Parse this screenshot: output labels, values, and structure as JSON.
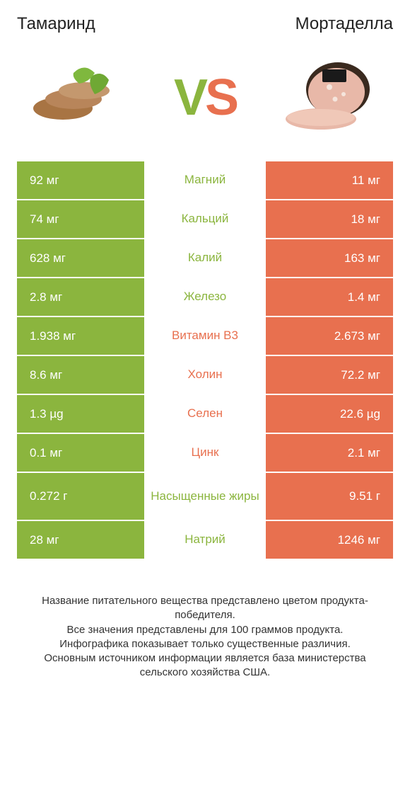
{
  "header": {
    "left_title": "Тамаринд",
    "right_title": "Мортаделла"
  },
  "vs": {
    "v": "V",
    "s": "S"
  },
  "colors": {
    "green": "#8bb53e",
    "red": "#e8704f",
    "white": "#ffffff"
  },
  "rows": [
    {
      "left": "92 мг",
      "label": "Магний",
      "right": "11 мг",
      "winner": "left",
      "tall": false
    },
    {
      "left": "74 мг",
      "label": "Кальций",
      "right": "18 мг",
      "winner": "left",
      "tall": false
    },
    {
      "left": "628 мг",
      "label": "Калий",
      "right": "163 мг",
      "winner": "left",
      "tall": false
    },
    {
      "left": "2.8 мг",
      "label": "Железо",
      "right": "1.4 мг",
      "winner": "left",
      "tall": false
    },
    {
      "left": "1.938 мг",
      "label": "Витамин B3",
      "right": "2.673 мг",
      "winner": "right",
      "tall": false
    },
    {
      "left": "8.6 мг",
      "label": "Холин",
      "right": "72.2 мг",
      "winner": "right",
      "tall": false
    },
    {
      "left": "1.3 µg",
      "label": "Селен",
      "right": "22.6 µg",
      "winner": "right",
      "tall": false
    },
    {
      "left": "0.1 мг",
      "label": "Цинк",
      "right": "2.1 мг",
      "winner": "right",
      "tall": false
    },
    {
      "left": "0.272 г",
      "label": "Насыщенные жиры",
      "right": "9.51 г",
      "winner": "left",
      "tall": true
    },
    {
      "left": "28 мг",
      "label": "Натрий",
      "right": "1246 мг",
      "winner": "left",
      "tall": false
    }
  ],
  "footer": {
    "line1": "Название питательного вещества представлено цветом продукта-победителя.",
    "line2": "Все значения представлены для 100 граммов продукта.",
    "line3": "Инфографика показывает только существенные различия.",
    "line4": "Основным источником информации является база министерства сельского хозяйства США."
  }
}
